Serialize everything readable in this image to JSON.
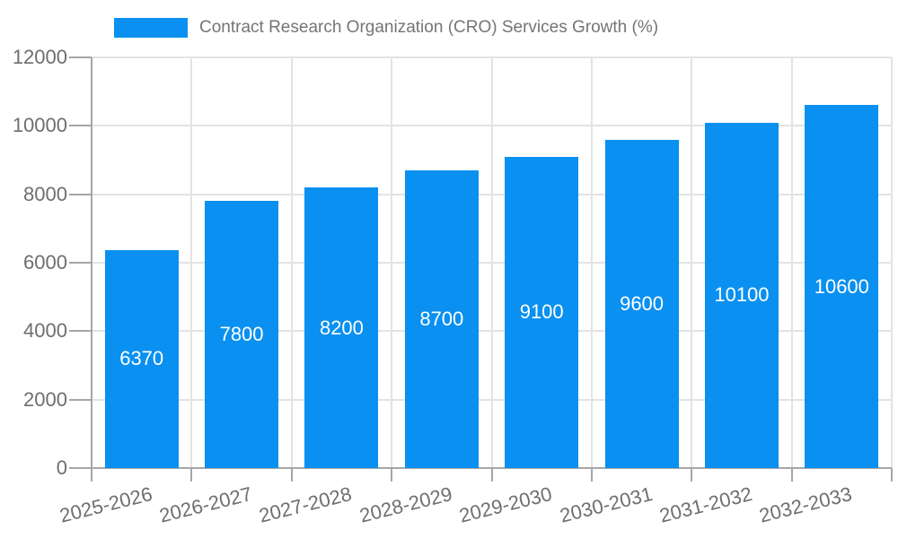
{
  "legend": {
    "label": "Contract Research Organization (CRO) Services Growth (%)"
  },
  "colors": {
    "bar": "#0a90f0",
    "grid": "#e3e3e3",
    "axis": "#a6a6a6",
    "axis_label_text": "#6e6e6e",
    "title_text": "#757575",
    "bar_label_text": "#ffffff",
    "background": "#ffffff"
  },
  "chart_data": {
    "type": "bar",
    "title": "Contract Research Organization (CRO) Services Growth (%)",
    "categories": [
      "2025-2026",
      "2026-2027",
      "2027-2028",
      "2028-2029",
      "2029-2030",
      "2030-2031",
      "2031-2032",
      "2032-2033"
    ],
    "values": [
      6370,
      7800,
      8200,
      8700,
      9100,
      9600,
      10100,
      10600
    ],
    "xlabel": "",
    "ylabel": "",
    "ylim": [
      0,
      12000
    ],
    "yticks": [
      0,
      2000,
      4000,
      6000,
      8000,
      10000,
      12000
    ],
    "grid": true,
    "legend_position": "top-left",
    "bar_labels": "inside-center"
  }
}
